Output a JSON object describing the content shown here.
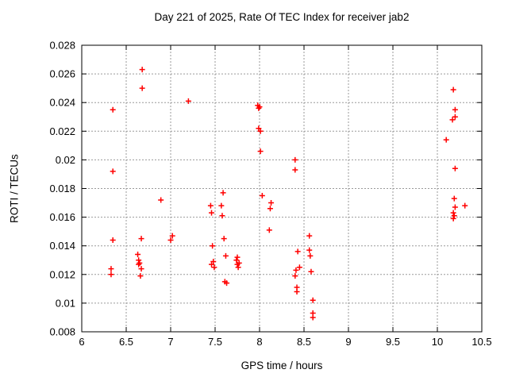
{
  "chart_data": {
    "type": "scatter",
    "title": "Day 221 of 2025, Rate Of TEC Index for receiver jab2",
    "xlabel": "GPS time / hours",
    "ylabel": "ROTI / TECUs",
    "xlim": [
      6,
      10.5
    ],
    "ylim": [
      0.008,
      0.028
    ],
    "x_tick_values": [
      6,
      6.5,
      7,
      7.5,
      8,
      8.5,
      9,
      9.5,
      10,
      10.5
    ],
    "x_tick_labels": [
      "6",
      "6.5",
      "7",
      "7.5",
      "8",
      "8.5",
      "9",
      "9.5",
      "10",
      "10.5"
    ],
    "y_tick_values": [
      0.008,
      0.01,
      0.012,
      0.014,
      0.016,
      0.018,
      0.02,
      0.022,
      0.024,
      0.026,
      0.028
    ],
    "y_tick_labels": [
      "0.008",
      "0.01",
      "0.012",
      "0.014",
      "0.016",
      "0.018",
      "0.02",
      "0.022",
      "0.024",
      "0.026",
      "0.028"
    ],
    "grid": true,
    "legend": "none",
    "marker": "plus",
    "colors": {
      "marker": "#ff0000",
      "grid": "#9a9a9a",
      "border": "#000000",
      "background": "#ffffff"
    },
    "series": [
      {
        "name": "ROTI",
        "points": [
          [
            6.35,
            0.0235
          ],
          [
            6.35,
            0.0192
          ],
          [
            6.35,
            0.0144
          ],
          [
            6.33,
            0.0124
          ],
          [
            6.33,
            0.012
          ],
          [
            6.68,
            0.0263
          ],
          [
            6.68,
            0.025
          ],
          [
            6.67,
            0.0145
          ],
          [
            6.63,
            0.0134
          ],
          [
            6.64,
            0.013
          ],
          [
            6.65,
            0.0128
          ],
          [
            6.64,
            0.0127
          ],
          [
            6.67,
            0.0124
          ],
          [
            6.66,
            0.0119
          ],
          [
            6.89,
            0.0172
          ],
          [
            7.02,
            0.0147
          ],
          [
            7.0,
            0.0144
          ],
          [
            7.2,
            0.0241
          ],
          [
            7.59,
            0.0177
          ],
          [
            7.45,
            0.0168
          ],
          [
            7.57,
            0.0168
          ],
          [
            7.46,
            0.0163
          ],
          [
            7.58,
            0.0161
          ],
          [
            7.6,
            0.0145
          ],
          [
            7.47,
            0.014
          ],
          [
            7.62,
            0.0133
          ],
          [
            7.48,
            0.0129
          ],
          [
            7.46,
            0.0127
          ],
          [
            7.49,
            0.0125
          ],
          [
            7.61,
            0.0115
          ],
          [
            7.63,
            0.0114
          ],
          [
            7.75,
            0.0132
          ],
          [
            7.74,
            0.013
          ],
          [
            7.77,
            0.0128
          ],
          [
            7.75,
            0.0127
          ],
          [
            7.76,
            0.0125
          ],
          [
            7.98,
            0.0238
          ],
          [
            7.99,
            0.0236
          ],
          [
            8.0,
            0.0237
          ],
          [
            7.99,
            0.0222
          ],
          [
            8.01,
            0.022
          ],
          [
            8.01,
            0.0206
          ],
          [
            8.03,
            0.0175
          ],
          [
            8.13,
            0.017
          ],
          [
            8.12,
            0.0166
          ],
          [
            8.11,
            0.0151
          ],
          [
            8.4,
            0.02
          ],
          [
            8.4,
            0.0193
          ],
          [
            8.43,
            0.0136
          ],
          [
            8.56,
            0.0147
          ],
          [
            8.56,
            0.0137
          ],
          [
            8.57,
            0.0133
          ],
          [
            8.45,
            0.0125
          ],
          [
            8.41,
            0.0123
          ],
          [
            8.58,
            0.0122
          ],
          [
            8.4,
            0.0119
          ],
          [
            8.42,
            0.0111
          ],
          [
            8.42,
            0.0108
          ],
          [
            8.6,
            0.0102
          ],
          [
            8.6,
            0.0093
          ],
          [
            8.6,
            0.009
          ],
          [
            10.1,
            0.0214
          ],
          [
            10.18,
            0.0249
          ],
          [
            10.2,
            0.0235
          ],
          [
            10.2,
            0.023
          ],
          [
            10.17,
            0.0228
          ],
          [
            10.2,
            0.0194
          ],
          [
            10.19,
            0.0173
          ],
          [
            10.2,
            0.0167
          ],
          [
            10.31,
            0.0168
          ],
          [
            10.18,
            0.0163
          ],
          [
            10.19,
            0.0161
          ],
          [
            10.18,
            0.0159
          ]
        ]
      }
    ]
  }
}
